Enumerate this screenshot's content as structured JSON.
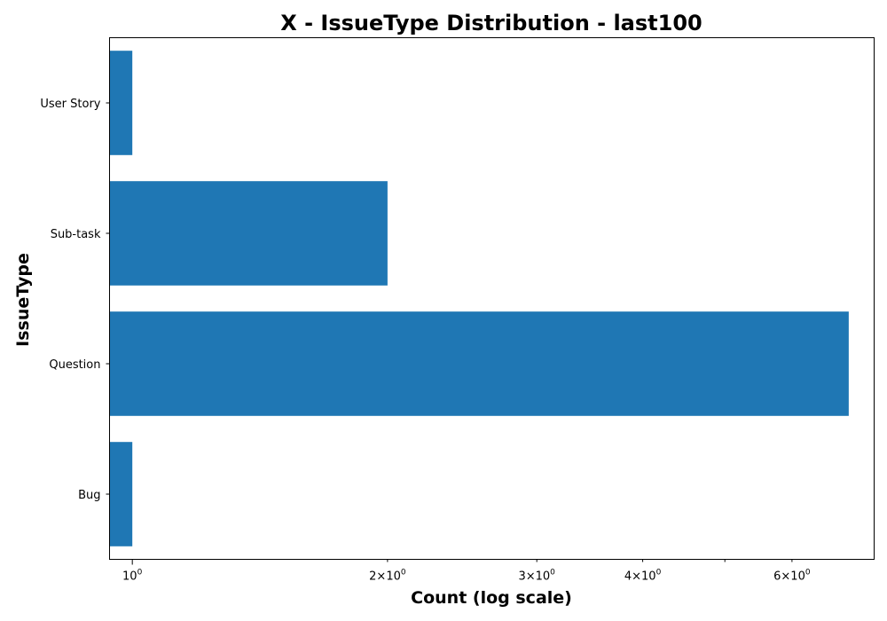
{
  "chart_data": {
    "type": "bar",
    "orientation": "horizontal",
    "title": "X - IssueType Distribution - last100",
    "xlabel": "Count (log scale)",
    "ylabel": "IssueType",
    "x_scale": "log",
    "xlim": [
      0.94,
      7.5
    ],
    "categories": [
      "Bug",
      "Question",
      "Sub-task",
      "User Story"
    ],
    "values": [
      1,
      7,
      2,
      1
    ],
    "bar_color": "#1f77b4",
    "grid": false,
    "legend": "none",
    "x_major_ticks": [
      {
        "value": 1,
        "base": "10",
        "exponent": "0"
      }
    ],
    "x_minor_ticks": [
      {
        "value": 2,
        "base": "2×10",
        "exponent": "0"
      },
      {
        "value": 3,
        "base": "3×10",
        "exponent": "0"
      },
      {
        "value": 4,
        "base": "4×10",
        "exponent": "0"
      },
      {
        "value": 5,
        "base": "",
        "exponent": ""
      },
      {
        "value": 6,
        "base": "6×10",
        "exponent": "0"
      }
    ]
  }
}
